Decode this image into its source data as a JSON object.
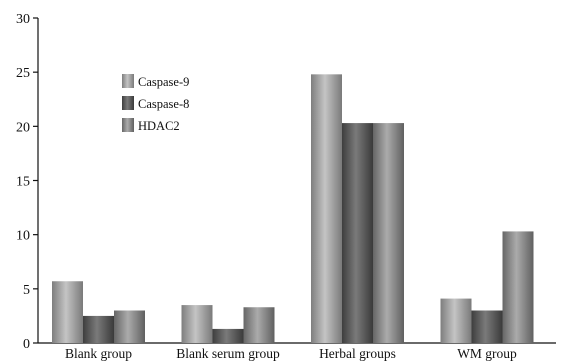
{
  "chart_data": {
    "type": "bar",
    "categories": [
      "Blank group",
      "Blank serum group",
      "Herbal groups",
      "WM group"
    ],
    "series": [
      {
        "name": "Caspase-9",
        "values": [
          5.7,
          3.5,
          24.8,
          4.1
        ]
      },
      {
        "name": "Caspase-8",
        "values": [
          2.5,
          1.3,
          20.3,
          3.0
        ]
      },
      {
        "name": "HDAC2",
        "values": [
          3.0,
          3.3,
          20.3,
          10.3
        ]
      }
    ],
    "ylim": [
      0,
      30
    ],
    "yticks": [
      0,
      5,
      10,
      15,
      20,
      25,
      30
    ],
    "title": "",
    "xlabel": "",
    "ylabel": "",
    "grid": false,
    "legend_position": "upper-left-inside",
    "colors": {
      "Caspase-9": "#9a9a9a",
      "Caspase-8": "#5a5a5a",
      "HDAC2": "#858585"
    }
  }
}
